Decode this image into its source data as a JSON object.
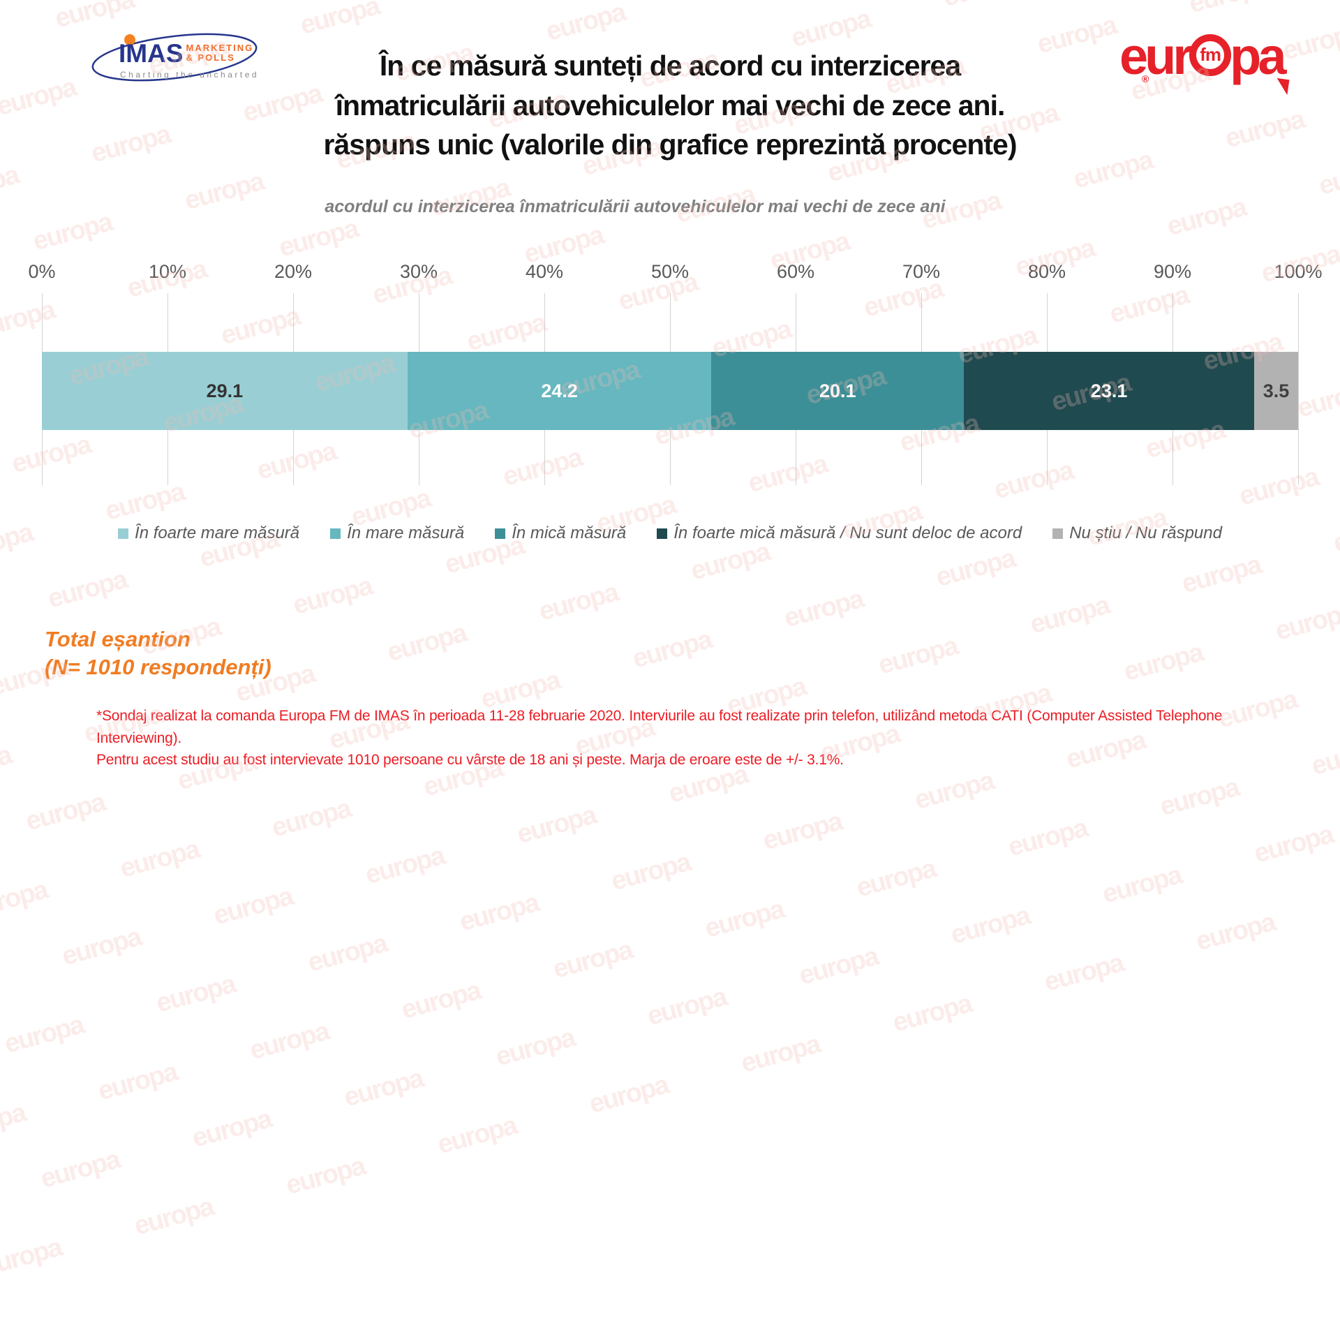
{
  "header": {
    "imas_logo": {
      "name": "IMAS",
      "sub_line1": "MARKETING",
      "sub_line2": "& POLLS",
      "tagline": "Charting the uncharted"
    },
    "europa_logo": {
      "part1": "eur",
      "fm": "fm",
      "part2": "pa",
      "registered": "®"
    }
  },
  "title": {
    "line1": "În ce măsură sunteți de acord cu interzicerea",
    "line2": "înmatriculării autovehiculelor mai vechi de zece ani.",
    "line3": "răspuns unic (valorile din grafice reprezintă procente)"
  },
  "subtitle": "acordul cu interzicerea înmatriculării autovehiculelor mai vechi de zece ani",
  "chart_data": {
    "type": "bar",
    "orientation": "horizontal_stacked",
    "axis": {
      "min": 0,
      "max": 100,
      "tick_step": 10,
      "tick_labels": [
        "0%",
        "10%",
        "20%",
        "30%",
        "40%",
        "50%",
        "60%",
        "70%",
        "80%",
        "90%",
        "100%"
      ]
    },
    "series": [
      {
        "name": "În foarte mare măsură",
        "value": 29.1,
        "color": "#99cfd4",
        "label_color": "#333333"
      },
      {
        "name": "În mare măsură",
        "value": 24.2,
        "color": "#66b7bf",
        "label_color": "#ffffff"
      },
      {
        "name": "În mică măsură",
        "value": 20.1,
        "color": "#3d8f97",
        "label_color": "#ffffff"
      },
      {
        "name": "În foarte mică măsură / Nu sunt deloc de acord",
        "value": 23.1,
        "color": "#1f4a4f",
        "label_color": "#ffffff"
      },
      {
        "name": "Nu știu / Nu răspund",
        "value": 3.5,
        "color": "#b3b2b2",
        "label_color": "#3f3f3f"
      }
    ],
    "grid": true,
    "legend_position": "bottom"
  },
  "sample_note": {
    "line1": "Total eșantion",
    "line2": "(N= 1010 respondenți)"
  },
  "footnote": {
    "line1": "*Sondaj realizat la comanda Europa FM de IMAS în perioada 11-28 februarie 2020. Interviurile au fost realizate prin telefon, utilizând metoda CATI (Computer Assisted Telephone Interviewing).",
    "line2": "Pentru acest studiu au fost intervievate 1010 persoane cu vârste de 18 ani și peste. Marja de eroare este de +/- 3.1%."
  },
  "watermark": {
    "text": "europa",
    "color": "rgba(241,187,180,0.28)"
  }
}
